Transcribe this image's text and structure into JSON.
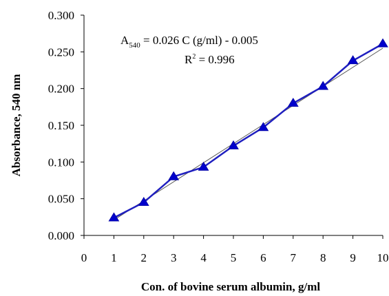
{
  "chart_data": {
    "type": "line",
    "x": [
      1,
      2,
      3,
      4,
      5,
      6,
      7,
      8,
      9,
      10
    ],
    "series": [
      {
        "values": [
          0.024,
          0.045,
          0.08,
          0.093,
          0.122,
          0.147,
          0.18,
          0.203,
          0.238,
          0.261
        ],
        "color": "#1f1fbf",
        "marker": "triangle"
      }
    ],
    "trendline": {
      "slope": 0.026,
      "intercept": -0.005,
      "color": "#555555"
    },
    "xlabel": "Con. of bovine serum albumin, g/ml",
    "ylabel": "Absorbance, 540 nm",
    "xlim": [
      0,
      10
    ],
    "ylim": [
      0,
      0.3
    ],
    "xticks": [
      "0",
      "1",
      "2",
      "3",
      "4",
      "5",
      "6",
      "7",
      "8",
      "9",
      "10"
    ],
    "yticks": [
      "0.000",
      "0.050",
      "0.100",
      "0.150",
      "0.200",
      "0.250",
      "0.300"
    ],
    "grid": false,
    "annotation": {
      "equation_main": "A",
      "equation_sub": "540",
      "equation_rest": " = 0.026 C (g/ml) - 0.005",
      "r2_main": "R",
      "r2_sup": "2",
      "r2_rest": " = 0.996"
    }
  }
}
